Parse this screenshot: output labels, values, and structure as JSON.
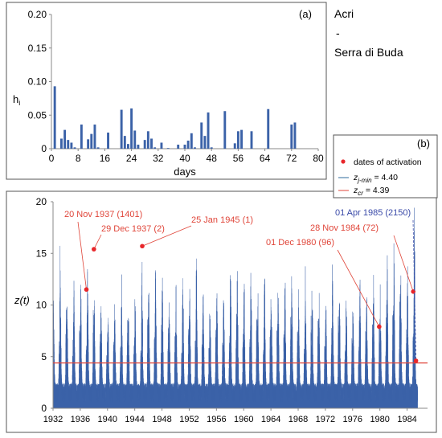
{
  "site": {
    "name_line1": "Acri",
    "dash": "-",
    "name_line2": "Serra di Buda"
  },
  "colors": {
    "bar": "#3b62a8",
    "threshold_zjmin": "#2e6b9e",
    "threshold_zcr": "#e0463a",
    "activation_point": "#e8262a",
    "label_red": "#e0463a",
    "label_blue": "#3a4aa8"
  },
  "chart_data": [
    {
      "type": "bar",
      "panel_label": "(a)",
      "xlabel": "days",
      "ylabel": "h",
      "ylabel_sub": "i",
      "xlim": [
        0,
        80
      ],
      "ylim": [
        0,
        0.2
      ],
      "xticks": [
        0,
        8,
        16,
        24,
        32,
        40,
        48,
        56,
        64,
        72,
        80
      ],
      "yticks": [
        0,
        0.05,
        0.1,
        0.15,
        0.2
      ],
      "ytick_labels": [
        "0",
        "0.05",
        "0.10",
        "0.15",
        "0.20"
      ],
      "x": [
        1,
        3,
        4,
        5,
        6,
        7,
        9,
        11,
        12,
        13,
        14,
        17,
        21,
        22,
        23,
        24,
        25,
        26,
        28,
        29,
        30,
        31,
        33,
        35,
        38,
        40,
        41,
        42,
        43,
        45,
        46,
        47,
        48,
        52,
        55,
        56,
        57,
        60,
        65,
        72,
        73
      ],
      "values": [
        0.093,
        0.015,
        0.028,
        0.013,
        0.009,
        0.002,
        0.036,
        0.014,
        0.022,
        0.036,
        0.002,
        0.024,
        0.058,
        0.019,
        0.007,
        0.06,
        0.027,
        0.006,
        0.013,
        0.026,
        0.015,
        0.002,
        0.009,
        0.001,
        0.006,
        0.006,
        0.012,
        0.023,
        0.002,
        0.039,
        0.019,
        0.054,
        0.002,
        0.056,
        0.008,
        0.026,
        0.028,
        0.026,
        0.059,
        0.036,
        0.039
      ]
    },
    {
      "type": "area",
      "panel_label": "(b)",
      "ylabel": "z(t)",
      "xlim": [
        1932,
        1987
      ],
      "ylim": [
        0,
        20
      ],
      "xticks": [
        1932,
        1936,
        1940,
        1944,
        1948,
        1952,
        1956,
        1960,
        1964,
        1968,
        1972,
        1976,
        1980,
        1984
      ],
      "yticks": [
        0,
        5,
        10,
        15,
        20
      ],
      "series_hint": "daily z(t) envelope, annual peaks",
      "annual_peaks": [
        {
          "year": 1932,
          "peak": 10.5
        },
        {
          "year": 1933,
          "peak": 14.5
        },
        {
          "year": 1934,
          "peak": 9.0
        },
        {
          "year": 1935,
          "peak": 12.0
        },
        {
          "year": 1936,
          "peak": 11.0
        },
        {
          "year": 1937,
          "peak": 12.5
        },
        {
          "year": 1938,
          "peak": 10.0
        },
        {
          "year": 1939,
          "peak": 9.5
        },
        {
          "year": 1940,
          "peak": 10.0
        },
        {
          "year": 1941,
          "peak": 9.0
        },
        {
          "year": 1942,
          "peak": 11.5
        },
        {
          "year": 1943,
          "peak": 10.0
        },
        {
          "year": 1944,
          "peak": 9.5
        },
        {
          "year": 1945,
          "peak": 15.5
        },
        {
          "year": 1946,
          "peak": 10.5
        },
        {
          "year": 1947,
          "peak": 12.0
        },
        {
          "year": 1948,
          "peak": 11.0
        },
        {
          "year": 1949,
          "peak": 9.5
        },
        {
          "year": 1950,
          "peak": 10.0
        },
        {
          "year": 1951,
          "peak": 13.5
        },
        {
          "year": 1952,
          "peak": 11.5
        },
        {
          "year": 1953,
          "peak": 13.0
        },
        {
          "year": 1954,
          "peak": 11.0
        },
        {
          "year": 1955,
          "peak": 10.5
        },
        {
          "year": 1956,
          "peak": 10.0
        },
        {
          "year": 1957,
          "peak": 11.0
        },
        {
          "year": 1958,
          "peak": 13.5
        },
        {
          "year": 1959,
          "peak": 12.0
        },
        {
          "year": 1960,
          "peak": 11.5
        },
        {
          "year": 1961,
          "peak": 12.5
        },
        {
          "year": 1962,
          "peak": 11.0
        },
        {
          "year": 1963,
          "peak": 13.0
        },
        {
          "year": 1964,
          "peak": 10.5
        },
        {
          "year": 1965,
          "peak": 11.0
        },
        {
          "year": 1966,
          "peak": 12.0
        },
        {
          "year": 1967,
          "peak": 11.5
        },
        {
          "year": 1968,
          "peak": 10.0
        },
        {
          "year": 1969,
          "peak": 12.5
        },
        {
          "year": 1970,
          "peak": 11.0
        },
        {
          "year": 1971,
          "peak": 10.5
        },
        {
          "year": 1972,
          "peak": 11.0
        },
        {
          "year": 1973,
          "peak": 13.5
        },
        {
          "year": 1974,
          "peak": 10.5
        },
        {
          "year": 1975,
          "peak": 11.0
        },
        {
          "year": 1976,
          "peak": 10.0
        },
        {
          "year": 1977,
          "peak": 12.0
        },
        {
          "year": 1978,
          "peak": 10.0
        },
        {
          "year": 1979,
          "peak": 12.5
        },
        {
          "year": 1980,
          "peak": 11.5
        },
        {
          "year": 1981,
          "peak": 14.5
        },
        {
          "year": 1982,
          "peak": 14.0
        },
        {
          "year": 1983,
          "peak": 11.5
        },
        {
          "year": 1984,
          "peak": 12.5
        },
        {
          "year": 1985,
          "peak": 19.0
        }
      ],
      "thresholds": [
        {
          "name_main": "z",
          "name_sub": "j-min",
          "value": 4.4,
          "label_value": " = 4.40"
        },
        {
          "name_main": "z",
          "name_sub": "cr",
          "value": 4.39,
          "label_value": " = 4.39"
        }
      ],
      "legend": {
        "placement": "top-right",
        "activation_label": "dates of activation"
      },
      "activations": [
        {
          "label": "20 Nov 1937 (1401)",
          "x": 1936.9,
          "y": 11.5,
          "color": "red"
        },
        {
          "label": "29 Dec 1937 (2)",
          "x": 1938.0,
          "y": 15.4,
          "color": "red"
        },
        {
          "label": "25 Jan 1945 (1)",
          "x": 1945.1,
          "y": 15.7,
          "color": "red"
        },
        {
          "label": "01 Dec 1980 (96)",
          "x": 1979.9,
          "y": 7.9,
          "color": "red"
        },
        {
          "label": "28 Nov 1984 (72)",
          "x": 1984.9,
          "y": 11.3,
          "color": "red"
        },
        {
          "label": "01 Apr 1985 (2150)",
          "x": 1985.3,
          "y": 4.6,
          "color": "blue"
        }
      ]
    }
  ]
}
